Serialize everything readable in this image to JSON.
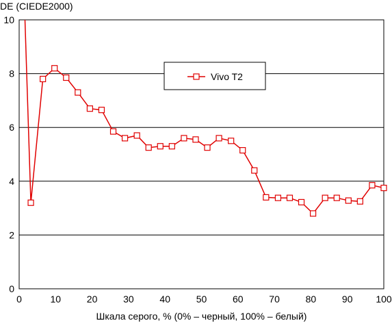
{
  "chart_data": {
    "type": "line",
    "title": "",
    "ylabel": "DE (CIEDE2000)",
    "xlabel": "Шкала серого, % (0% – черный, 100% – белый)",
    "xlim": [
      0,
      100
    ],
    "ylim": [
      0,
      10
    ],
    "xticks": [
      0,
      10,
      20,
      30,
      40,
      50,
      60,
      70,
      80,
      90,
      100
    ],
    "yticks": [
      0,
      2,
      4,
      6,
      8,
      10
    ],
    "grid": {
      "horizontal": true,
      "vertical": false
    },
    "legend": {
      "position": "top-center"
    },
    "series": [
      {
        "name": "Vivo T2",
        "color": "#e00000",
        "marker": "square",
        "x": [
          1.6,
          3.2,
          6.5,
          9.7,
          12.9,
          16.1,
          19.4,
          22.6,
          25.8,
          29.0,
          32.3,
          35.5,
          38.7,
          41.9,
          45.2,
          48.4,
          51.6,
          54.8,
          58.1,
          61.3,
          64.5,
          67.7,
          71.0,
          74.2,
          77.4,
          80.6,
          83.9,
          87.1,
          90.3,
          93.5,
          96.8,
          100.0
        ],
        "values": [
          10.0,
          3.2,
          7.8,
          8.2,
          7.85,
          7.3,
          6.7,
          6.65,
          5.85,
          5.6,
          5.7,
          5.25,
          5.3,
          5.3,
          5.6,
          5.55,
          5.25,
          5.6,
          5.5,
          5.15,
          4.4,
          3.4,
          3.38,
          3.38,
          3.22,
          2.8,
          3.38,
          3.38,
          3.28,
          3.25,
          3.85,
          3.75
        ]
      }
    ]
  }
}
